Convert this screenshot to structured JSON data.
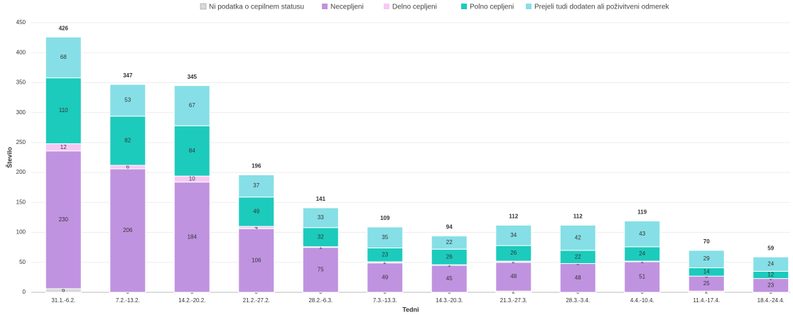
{
  "chart_data": {
    "type": "stacked_bar",
    "x_label": "Tedni",
    "y_label": "Število",
    "categories": [
      "31.1.-6.2.",
      "7.2.-13.2.",
      "14.2.-20.2.",
      "21.2.-27.2.",
      "28.2.-6.3.",
      "7.3.-13.3.",
      "14.3.-20.3.",
      "21.3.-27.3.",
      "28.3.-3.4.",
      "4.4.-10.4.",
      "11.4.-17.4.",
      "18.4.-24.4."
    ],
    "series": [
      {
        "name": "Ni podatka o cepilnem statusu",
        "color": "#d9d9d9",
        "values": [
          6,
          0,
          0,
          0,
          0,
          0,
          0,
          2,
          0,
          0,
          2,
          0
        ]
      },
      {
        "name": "Necepljeni",
        "color": "#c093e0",
        "values": [
          230,
          206,
          184,
          106,
          75,
          49,
          45,
          48,
          48,
          51,
          25,
          23
        ]
      },
      {
        "name": "Delno cepljeni",
        "color": "#f8c8f4",
        "values": [
          12,
          6,
          10,
          4,
          1,
          2,
          1,
          2,
          0,
          1,
          0,
          0
        ]
      },
      {
        "name": "Polno cepljeni",
        "color": "#1ccbbc",
        "values": [
          110,
          82,
          84,
          49,
          32,
          23,
          26,
          26,
          22,
          24,
          14,
          12
        ]
      },
      {
        "name": "Prejeli tudi dodaten ali poživitveni odmerek",
        "color": "#86dfe6",
        "values": [
          68,
          53,
          67,
          37,
          33,
          35,
          22,
          34,
          42,
          43,
          29,
          24
        ]
      }
    ],
    "totals": [
      426,
      347,
      345,
      196,
      141,
      109,
      94,
      112,
      112,
      119,
      70,
      59
    ],
    "ylim": [
      0,
      450
    ],
    "yticks": [
      0,
      50,
      100,
      150,
      200,
      250,
      300,
      350,
      400,
      450
    ],
    "grid": true
  }
}
